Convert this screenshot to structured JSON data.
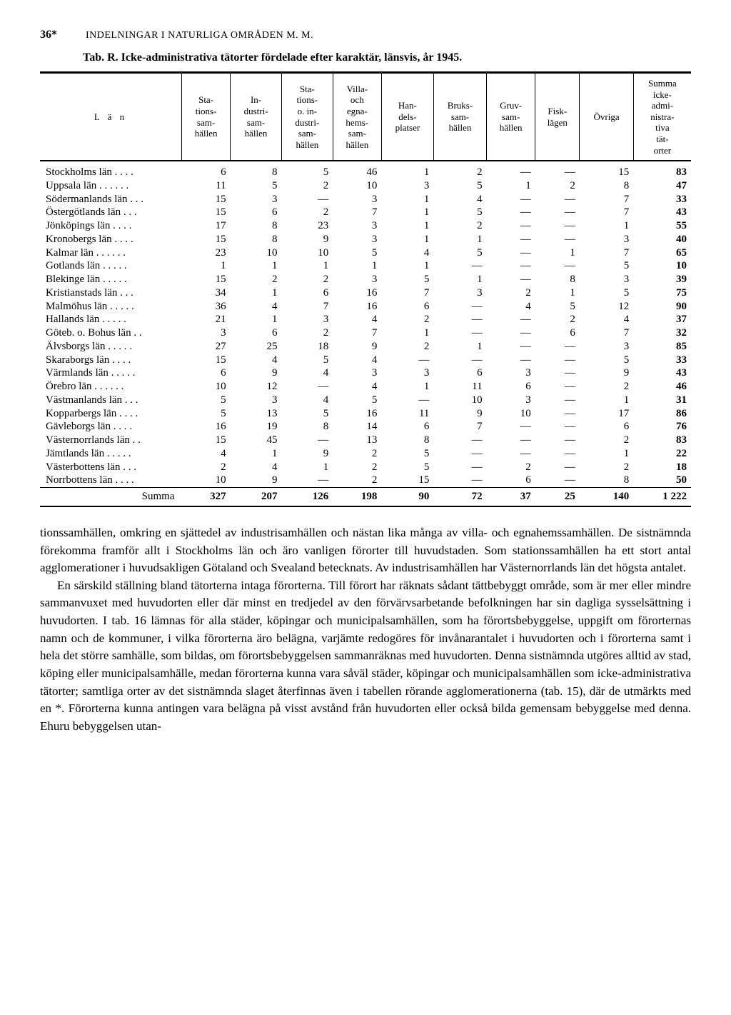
{
  "header": {
    "page_number": "36*",
    "running_head": "INDELNINGAR I NATURLIGA OMRÅDEN M. M."
  },
  "table": {
    "title": "Tab. R.  Icke-administrativa tätorter fördelade efter karaktär, länsvis, år 1945.",
    "columns": {
      "lan": "L ä n",
      "stations": "Sta-\ntions-\nsam-\nhällen",
      "industri": "In-\ndustri-\nsam-\nhällen",
      "stat_ind": "Sta-\ntions-\no. in-\ndustri-\nsam-\nhällen",
      "villa": "Villa-\noch\negna-\nhems-\nsam-\nhällen",
      "handels": "Han-\ndels-\nplatser",
      "bruks": "Bruks-\nsam-\nhällen",
      "gruv": "Gruv-\nsam-\nhällen",
      "fisk": "Fisk-\nlägen",
      "ovriga": "Övriga",
      "summa": "Summa\nicke-\nadmi-\nnistra-\ntiva\ntät-\norter"
    },
    "rows": [
      {
        "name": "Stockholms län . . . .",
        "v": [
          "6",
          "8",
          "5",
          "46",
          "1",
          "2",
          "—",
          "—",
          "15",
          "83"
        ]
      },
      {
        "name": "Uppsala län . . . . . .",
        "v": [
          "11",
          "5",
          "2",
          "10",
          "3",
          "5",
          "1",
          "2",
          "8",
          "47"
        ]
      },
      {
        "name": "Södermanlands län . . .",
        "v": [
          "15",
          "3",
          "—",
          "3",
          "1",
          "4",
          "—",
          "—",
          "7",
          "33"
        ]
      },
      {
        "name": "Östergötlands län . . .",
        "v": [
          "15",
          "6",
          "2",
          "7",
          "1",
          "5",
          "—",
          "—",
          "7",
          "43"
        ]
      },
      {
        "name": "Jönköpings län . . . .",
        "v": [
          "17",
          "8",
          "23",
          "3",
          "1",
          "2",
          "—",
          "—",
          "1",
          "55"
        ]
      },
      {
        "name": "Kronobergs län . . . .",
        "v": [
          "15",
          "8",
          "9",
          "3",
          "1",
          "1",
          "—",
          "—",
          "3",
          "40"
        ]
      },
      {
        "name": "Kalmar län . . . . . .",
        "v": [
          "23",
          "10",
          "10",
          "5",
          "4",
          "5",
          "—",
          "1",
          "7",
          "65"
        ]
      },
      {
        "name": "Gotlands län  . . . . .",
        "v": [
          "1",
          "1",
          "1",
          "1",
          "1",
          "—",
          "—",
          "—",
          "5",
          "10"
        ]
      },
      {
        "name": "Blekinge län  . . . . .",
        "v": [
          "15",
          "2",
          "2",
          "3",
          "5",
          "1",
          "—",
          "8",
          "3",
          "39"
        ]
      },
      {
        "name": "Kristianstads län . . .",
        "v": [
          "34",
          "1",
          "6",
          "16",
          "7",
          "3",
          "2",
          "1",
          "5",
          "75"
        ]
      },
      {
        "name": "Malmöhus län . . . . .",
        "v": [
          "36",
          "4",
          "7",
          "16",
          "6",
          "—",
          "4",
          "5",
          "12",
          "90"
        ]
      },
      {
        "name": "Hallands län  . . . . .",
        "v": [
          "21",
          "1",
          "3",
          "4",
          "2",
          "—",
          "—",
          "2",
          "4",
          "37"
        ]
      },
      {
        "name": "Göteb. o. Bohus län . .",
        "v": [
          "3",
          "6",
          "2",
          "7",
          "1",
          "—",
          "—",
          "6",
          "7",
          "32"
        ]
      },
      {
        "name": "Älvsborgs län . . . . .",
        "v": [
          "27",
          "25",
          "18",
          "9",
          "2",
          "1",
          "—",
          "—",
          "3",
          "85"
        ]
      },
      {
        "name": "Skaraborgs län  . . . .",
        "v": [
          "15",
          "4",
          "5",
          "4",
          "—",
          "—",
          "—",
          "—",
          "5",
          "33"
        ]
      },
      {
        "name": "Värmlands län . . . . .",
        "v": [
          "6",
          "9",
          "4",
          "3",
          "3",
          "6",
          "3",
          "—",
          "9",
          "43"
        ]
      },
      {
        "name": "Örebro län  . . . . . .",
        "v": [
          "10",
          "12",
          "—",
          "4",
          "1",
          "11",
          "6",
          "—",
          "2",
          "46"
        ]
      },
      {
        "name": "Västmanlands län . . .",
        "v": [
          "5",
          "3",
          "4",
          "5",
          "—",
          "10",
          "3",
          "—",
          "1",
          "31"
        ]
      },
      {
        "name": "Kopparbergs län . . . .",
        "v": [
          "5",
          "13",
          "5",
          "16",
          "11",
          "9",
          "10",
          "—",
          "17",
          "86"
        ]
      },
      {
        "name": "Gävleborgs län  . . . .",
        "v": [
          "16",
          "19",
          "8",
          "14",
          "6",
          "7",
          "—",
          "—",
          "6",
          "76"
        ]
      },
      {
        "name": "Västernorrlands län . .",
        "v": [
          "15",
          "45",
          "—",
          "13",
          "8",
          "—",
          "—",
          "—",
          "2",
          "83"
        ]
      },
      {
        "name": "Jämtlands län . . . . .",
        "v": [
          "4",
          "1",
          "9",
          "2",
          "5",
          "—",
          "—",
          "—",
          "1",
          "22"
        ]
      },
      {
        "name": "Västerbottens län . . .",
        "v": [
          "2",
          "4",
          "1",
          "2",
          "5",
          "—",
          "2",
          "—",
          "2",
          "18"
        ]
      },
      {
        "name": "Norrbottens län . . . .",
        "v": [
          "10",
          "9",
          "—",
          "2",
          "15",
          "—",
          "6",
          "—",
          "8",
          "50"
        ]
      }
    ],
    "sum": {
      "label": "Summa",
      "v": [
        "327",
        "207",
        "126",
        "198",
        "90",
        "72",
        "37",
        "25",
        "140",
        "1 222"
      ]
    }
  },
  "body": {
    "p1": "tionssamhällen, omkring en sjättedel av industrisamhällen och nästan lika många av villa- och egnahemssamhällen. De sistnämnda förekomma framför allt i Stockholms län och äro vanligen förorter till huvudstaden. Som stationssamhällen ha ett stort antal agglomerationer i huvudsakligen Götaland och Svealand betecknats. Av industrisamhällen har Västernorrlands län det högsta antalet.",
    "p2": "En särskild ställning bland tätorterna intaga förorterna. Till förort har räknats sådant tättbebyggt område, som är mer eller mindre sammanvuxet med huvudorten eller där minst en tredjedel av den förvärvsarbetande befolkningen har sin dagliga sysselsättning i huvudorten. I tab. 16 lämnas för alla städer, köpingar och municipalsamhällen, som ha förortsbebyggelse, uppgift om förorternas namn och de kommuner, i vilka förorterna äro belägna, varjämte redogöres för invånarantalet i huvudorten och i förorterna samt i hela det större samhälle, som bildas, om förortsbebyggelsen sammanräknas med huvudorten. Denna sistnämnda utgöres alltid av stad, köping eller municipalsamhälle, medan förorterna kunna vara såväl städer, köpingar och municipalsamhällen som icke-administrativa tätorter; samtliga orter av det sistnämnda slaget återfinnas även i tabellen rörande agglomerationerna (tab. 15), där de utmärkts med en *. Förorterna kunna antingen vara belägna på visst avstånd från huvudorten eller också bilda gemensam bebyggelse med denna. Ehuru bebyggelsen utan-"
  }
}
